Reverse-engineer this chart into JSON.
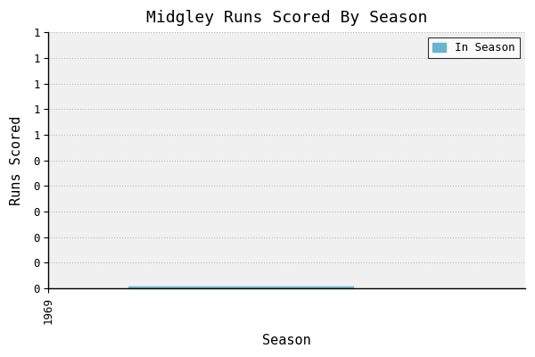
{
  "title": "Midgley Runs Scored By Season",
  "xlabel": "Season",
  "ylabel": "Runs Scored",
  "legend_label": "In Season",
  "bar_color": "#6ab4d0",
  "bar_start": 1975,
  "bar_end": 1992,
  "bar_height": 0.012,
  "xlim_left": 1969,
  "xlim_right": 2005,
  "ylim_bottom": 0.0,
  "ylim_top": 1.8,
  "yticks": [
    0.0,
    0.18,
    0.36,
    0.54,
    0.72,
    0.9,
    1.08,
    1.26,
    1.44,
    1.62,
    1.8
  ],
  "ytick_labels": [
    "0",
    "0",
    "0",
    "0",
    "0",
    "0",
    "1",
    "1",
    "1",
    "1",
    "1"
  ],
  "plot_bg_color": "#f0f0f0",
  "background_color": "#ffffff",
  "grid_color": "#bbbbbb",
  "font_family": "monospace",
  "title_fontsize": 13,
  "label_fontsize": 11,
  "tick_fontsize": 9
}
